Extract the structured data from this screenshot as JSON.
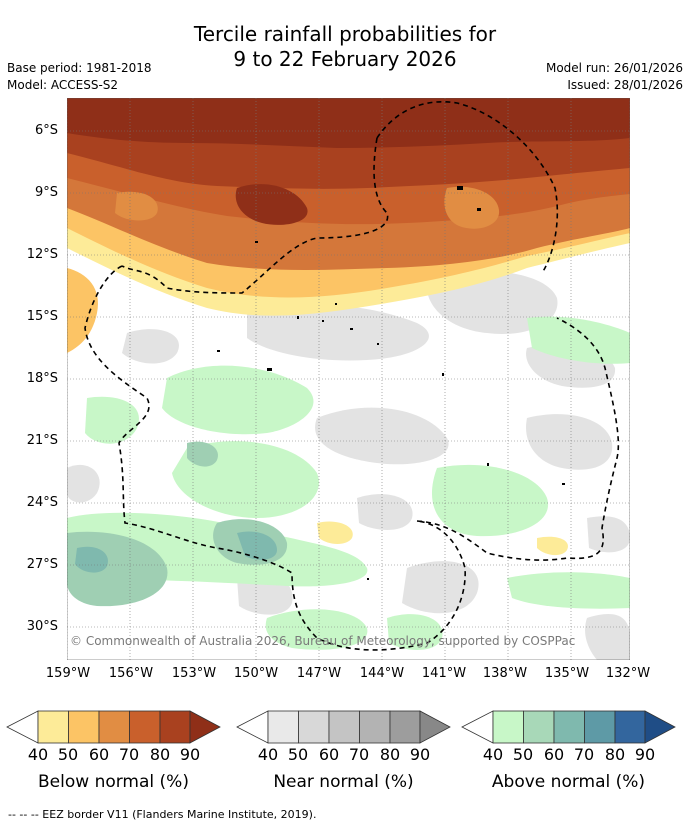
{
  "title_line1": "Tercile rainfall probabilities for",
  "title_line2": "9 to 22 February 2026",
  "meta": {
    "base_period": "Base period: 1981-2018",
    "model": "Model: ACCESS-S2",
    "model_run": "Model run: 26/01/2026",
    "issued": "Issued: 28/01/2026"
  },
  "map": {
    "lat_labels": [
      "6°S",
      "9°S",
      "12°S",
      "15°S",
      "18°S",
      "21°S",
      "24°S",
      "27°S",
      "30°S"
    ],
    "lon_labels": [
      "159°W",
      "156°W",
      "153°W",
      "150°W",
      "147°W",
      "144°W",
      "141°W",
      "138°W",
      "135°W",
      "132°W"
    ],
    "credit": "© Commonwealth of Australia 2026, Bureau of Meteorology, supported by COSPPac"
  },
  "colorbars": [
    {
      "label": "Below normal (%)",
      "ticks": [
        "40",
        "50",
        "60",
        "70",
        "80",
        "90"
      ],
      "colors": [
        "#fdeb98",
        "#fcc465",
        "#e18d43",
        "#c9602c",
        "#a9411f",
        "#8f2f18"
      ]
    },
    {
      "label": "Near normal (%)",
      "ticks": [
        "40",
        "50",
        "60",
        "70",
        "80",
        "90"
      ],
      "colors": [
        "#e9e9e9",
        "#d8d8d8",
        "#c4c4c4",
        "#b3b3b3",
        "#9d9d9d",
        "#888888"
      ]
    },
    {
      "label": "Above normal (%)",
      "ticks": [
        "40",
        "50",
        "60",
        "70",
        "80",
        "90"
      ],
      "colors": [
        "#c8f7c8",
        "#a8d8b8",
        "#7fb9ae",
        "#5e9aa6",
        "#33669e",
        "#1f4d86"
      ]
    }
  ],
  "footer": "--  --  -- EEZ border V11 (Flanders Marine Institute, 2019).",
  "colors": {
    "dark_brown": "#9a3520",
    "brown": "#b8492a",
    "orange": "#d4773a",
    "light_orange": "#fcc465",
    "pale_yellow": "#fdeb98",
    "grey": "#e3e3e3",
    "green": "#c8f7c8",
    "teal": "#9fcfb3"
  }
}
